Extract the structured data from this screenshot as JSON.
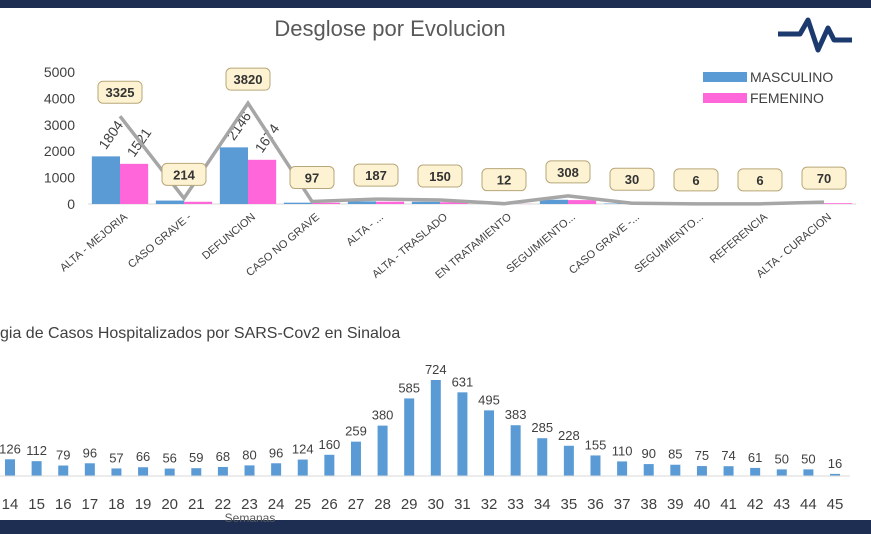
{
  "chart_data": [
    {
      "type": "bar",
      "title": "Desglose por Evolucion",
      "categories": [
        "ALTA - MEJORIA",
        "CASO GRAVE -",
        "DEFUNCION",
        "CASO NO GRAVE",
        "ALTA - ...",
        "ALTA - TRASLADO",
        "EN TRATAMIENTO",
        "SEGUIMIENTO...",
        "CASO GRAVE -...",
        "SEGUIMIENTO...",
        "REFERENCIA",
        "ALTA - CURACION"
      ],
      "series": [
        {
          "name": "MASCULINO",
          "color": "#5b9bd5",
          "values": [
            1804,
            130,
            2146,
            50,
            100,
            85,
            7,
            160,
            18,
            3,
            4,
            40
          ],
          "value_labels": [
            "1804",
            null,
            "2146",
            null,
            null,
            null,
            null,
            null,
            null,
            null,
            null,
            null
          ]
        },
        {
          "name": "FEMENINO",
          "color": "#ff66d9",
          "values": [
            1521,
            84,
            1674,
            47,
            87,
            65,
            5,
            148,
            12,
            3,
            2,
            30
          ],
          "value_labels": [
            "1521",
            null,
            "1674",
            null,
            null,
            null,
            null,
            null,
            null,
            null,
            null,
            null
          ]
        },
        {
          "name": null,
          "type": "line",
          "color": "#a6a6a6",
          "values": [
            3325,
            214,
            3820,
            97,
            187,
            150,
            12,
            308,
            30,
            6,
            6,
            70
          ]
        }
      ],
      "ylim": [
        0,
        5000
      ],
      "yticks": [
        0,
        1000,
        2000,
        3000,
        4000,
        5000
      ],
      "legend": "top-right"
    },
    {
      "type": "bar",
      "title": "gia de Casos Hospitalizados por SARS-Cov2 en Sinaloa",
      "x_label": "Semanas",
      "color": "#5b9bd5",
      "categories": [
        "14",
        "15",
        "16",
        "17",
        "18",
        "19",
        "20",
        "21",
        "22",
        "23",
        "24",
        "25",
        "26",
        "27",
        "28",
        "29",
        "30",
        "31",
        "32",
        "33",
        "34",
        "35",
        "36",
        "37",
        "38",
        "39",
        "40",
        "41",
        "42",
        "43",
        "44",
        "45"
      ],
      "values": [
        126,
        112,
        79,
        96,
        57,
        66,
        56,
        59,
        68,
        80,
        96,
        124,
        160,
        259,
        380,
        585,
        724,
        631,
        495,
        383,
        285,
        228,
        155,
        110,
        90,
        85,
        75,
        74,
        61,
        50,
        50,
        16
      ]
    }
  ]
}
